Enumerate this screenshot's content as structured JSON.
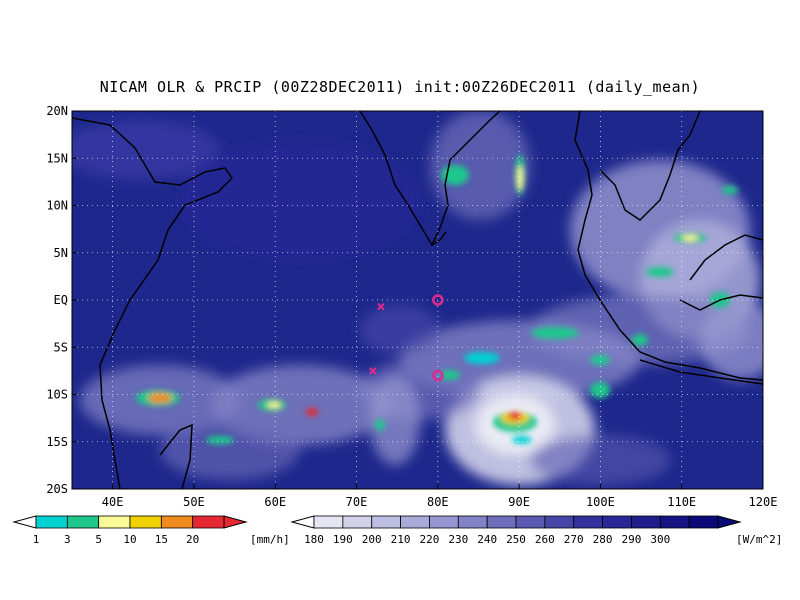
{
  "title": "NICAM OLR & PRCIP (00Z28DEC2011) init:00Z26DEC2011 (daily_mean)",
  "map": {
    "lat_labels": [
      "20N",
      "15N",
      "10N",
      "5N",
      "EQ",
      "5S",
      "10S",
      "15S",
      "20S"
    ],
    "lon_labels": [
      "40E",
      "50E",
      "60E",
      "70E",
      "80E",
      "90E",
      "100E",
      "110E",
      "120E"
    ],
    "lon_range": [
      35,
      120
    ],
    "lat_range": [
      -20,
      20
    ],
    "ocean_color": "#1e288c",
    "markers": [
      {
        "type": "x",
        "lon": 73,
        "lat": -0.7,
        "color": "#e0288c"
      },
      {
        "type": "o",
        "lon": 80,
        "lat": 0,
        "color": "#e0288c"
      },
      {
        "type": "x",
        "lon": 72,
        "lat": -7.5,
        "color": "#e0288c"
      },
      {
        "type": "o",
        "lon": 80,
        "lat": -8,
        "color": "#e0288c"
      }
    ]
  },
  "precip_legend": {
    "labels": [
      "1",
      "3",
      "5",
      "10",
      "15",
      "20"
    ],
    "unit": "[mm/h]",
    "colors": [
      "#00d2d2",
      "#1ec88c",
      "#fafa96",
      "#f0d200",
      "#f08c1e",
      "#e62832"
    ]
  },
  "olr_legend": {
    "labels": [
      "180",
      "190",
      "200",
      "210",
      "220",
      "230",
      "240",
      "250",
      "260",
      "270",
      "280",
      "290",
      "300"
    ],
    "unit": "[W/m^2]",
    "colors": [
      "#e6e6f2",
      "#d2d2ea",
      "#bebee2",
      "#aaaada",
      "#9696d0",
      "#8282c6",
      "#6e6ebc",
      "#5a5ab2",
      "#4646a8",
      "#32329e",
      "#282896",
      "#1e1e8c",
      "#141482",
      "#0a0a78"
    ]
  }
}
